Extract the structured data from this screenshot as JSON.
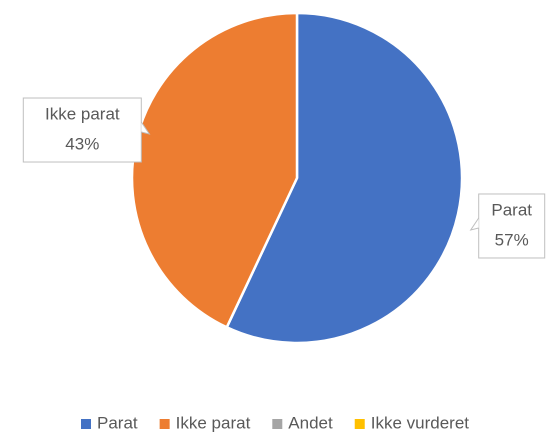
{
  "chart_data": {
    "type": "pie",
    "categories": [
      "Parat",
      "Ikke parat",
      "Andet",
      "Ikke vurderet"
    ],
    "values": [
      57,
      43,
      0,
      0
    ],
    "value_labels": [
      "57%",
      "43%",
      null,
      null
    ],
    "colors": [
      "#4472c4",
      "#ed7d31",
      "#a5a5a5",
      "#ffc000"
    ],
    "legend": "bottom"
  }
}
